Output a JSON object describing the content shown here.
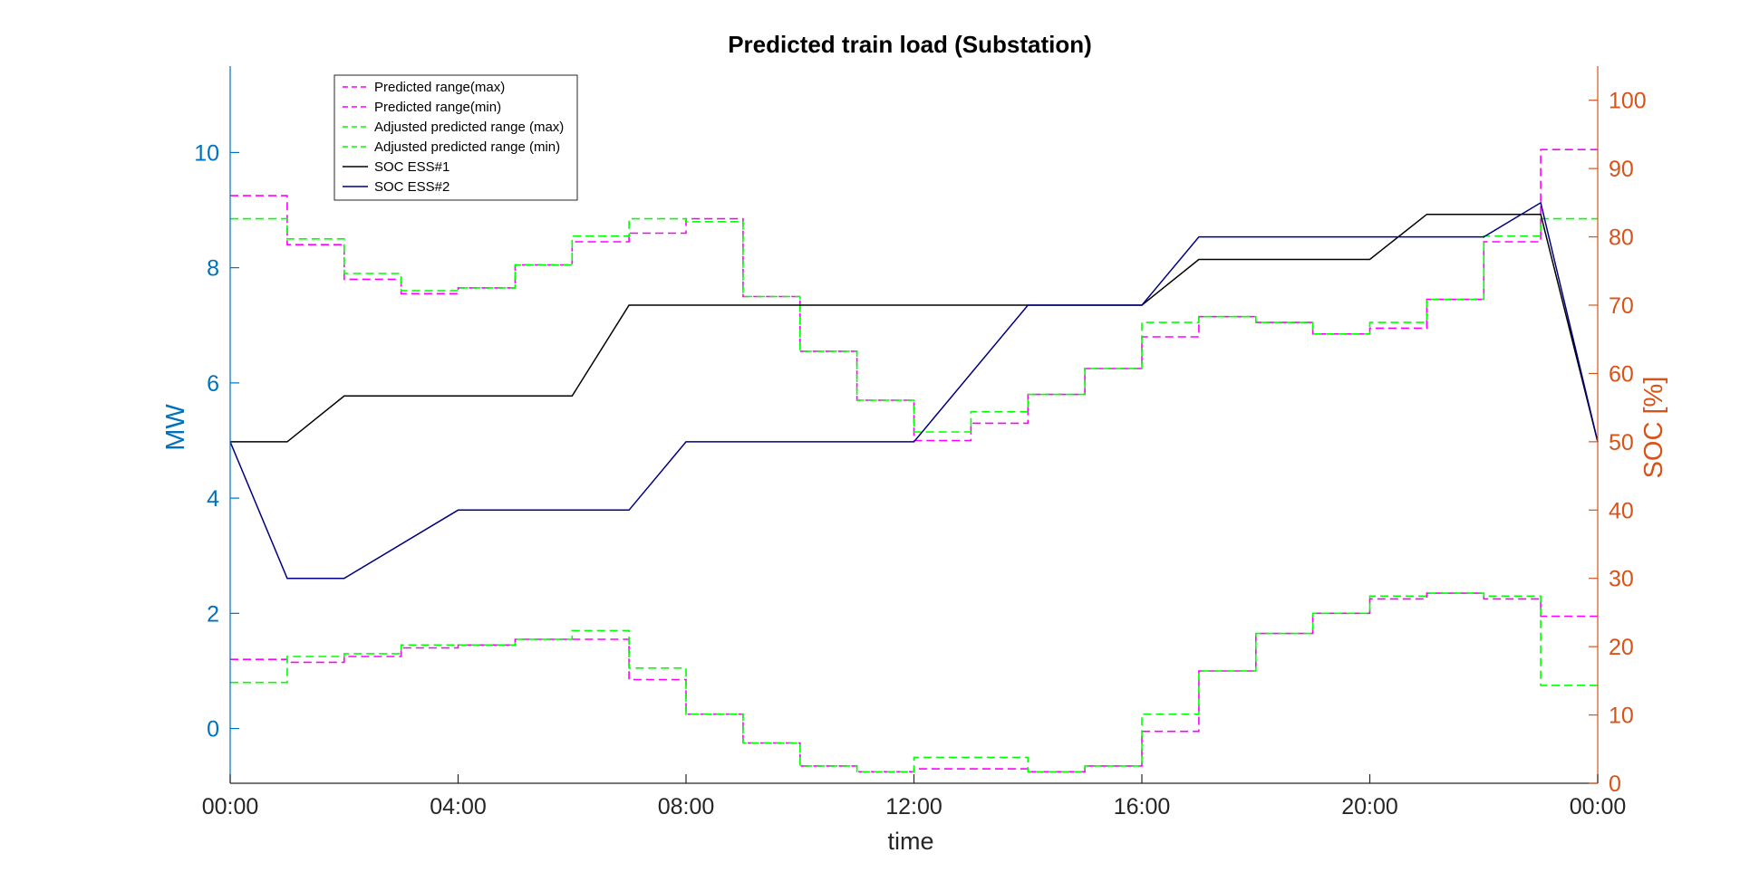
{
  "chart_data": {
    "type": "line",
    "title": "Predicted train load (Substation)",
    "xlabel": "time",
    "ylabel_left": "MW",
    "ylabel_right": "SOC [%]",
    "xlim": [
      0,
      24
    ],
    "ylim_left": [
      -0.95,
      11.5
    ],
    "ylim_right": [
      0,
      105
    ],
    "x_ticks": [
      0,
      4,
      8,
      12,
      16,
      20,
      24
    ],
    "x_tick_labels": [
      "00:00",
      "04:00",
      "08:00",
      "12:00",
      "16:00",
      "20:00",
      "00:00"
    ],
    "y_left_ticks": [
      0,
      2,
      4,
      6,
      8,
      10
    ],
    "y_left_tick_labels": [
      "0",
      "2",
      "4",
      "6",
      "8",
      "10"
    ],
    "y_right_ticks": [
      0,
      10,
      20,
      30,
      40,
      50,
      60,
      70,
      80,
      90,
      100
    ],
    "y_right_tick_labels": [
      "0",
      "10",
      "20",
      "30",
      "40",
      "50",
      "60",
      "70",
      "80",
      "90",
      "100"
    ],
    "grid": false,
    "legend_position": "top-left",
    "colors": {
      "left_axis": "#0072BD",
      "right_axis": "#D95319",
      "predicted": "#FF00FF",
      "adjusted": "#00FF00",
      "soc1": "#000000",
      "soc2": "#000080"
    },
    "step_series": [
      {
        "name": "Predicted range(max)",
        "axis": "left",
        "color": "predicted",
        "dashed": true,
        "values": [
          9.25,
          8.4,
          7.8,
          7.55,
          7.65,
          8.05,
          8.45,
          8.6,
          8.85,
          7.5,
          6.55,
          5.7,
          5.0,
          5.3,
          5.8,
          6.25,
          6.8,
          7.15,
          7.05,
          6.85,
          6.95,
          7.45,
          8.45,
          10.05
        ]
      },
      {
        "name": "Predicted range(min)",
        "axis": "left",
        "color": "predicted",
        "dashed": true,
        "values": [
          1.2,
          1.15,
          1.25,
          1.4,
          1.45,
          1.55,
          1.55,
          0.85,
          0.25,
          -0.25,
          -0.65,
          -0.75,
          -0.7,
          -0.7,
          -0.75,
          -0.65,
          -0.05,
          1.0,
          1.65,
          2.0,
          2.25,
          2.35,
          2.25,
          1.95
        ]
      },
      {
        "name": "Adjusted predicted range (max)",
        "axis": "left",
        "color": "adjusted",
        "dashed": true,
        "values": [
          8.85,
          8.5,
          7.9,
          7.6,
          7.65,
          8.05,
          8.55,
          8.85,
          8.8,
          7.5,
          6.55,
          5.7,
          5.15,
          5.5,
          5.8,
          6.25,
          7.05,
          7.15,
          7.05,
          6.85,
          7.05,
          7.45,
          8.55,
          8.85
        ]
      },
      {
        "name": "Adjusted predicted range (min)",
        "axis": "left",
        "color": "adjusted",
        "dashed": true,
        "values": [
          0.8,
          1.25,
          1.3,
          1.45,
          1.45,
          1.55,
          1.7,
          1.05,
          0.25,
          -0.25,
          -0.65,
          -0.75,
          -0.5,
          -0.5,
          -0.75,
          -0.65,
          0.25,
          1.0,
          1.65,
          2.0,
          2.3,
          2.35,
          2.3,
          0.75
        ]
      },
      {
        "name": "SOC ESS#1",
        "axis": "right",
        "color": "soc1",
        "dashed": false,
        "x": [
          0,
          1,
          2,
          6,
          7,
          12,
          14,
          16,
          17,
          20,
          21,
          23,
          24
        ],
        "values": [
          50,
          50,
          56.7,
          56.7,
          70,
          70,
          70,
          70,
          76.7,
          76.7,
          83.3,
          83.3,
          50
        ]
      },
      {
        "name": "SOC ESS#2",
        "axis": "right",
        "color": "soc2",
        "dashed": false,
        "x": [
          0,
          1,
          2,
          4,
          7,
          8,
          12,
          14,
          16,
          17,
          22,
          23,
          24
        ],
        "values": [
          50,
          30,
          30,
          40,
          40,
          50,
          50,
          70,
          70,
          80,
          80,
          85,
          50
        ]
      }
    ]
  }
}
